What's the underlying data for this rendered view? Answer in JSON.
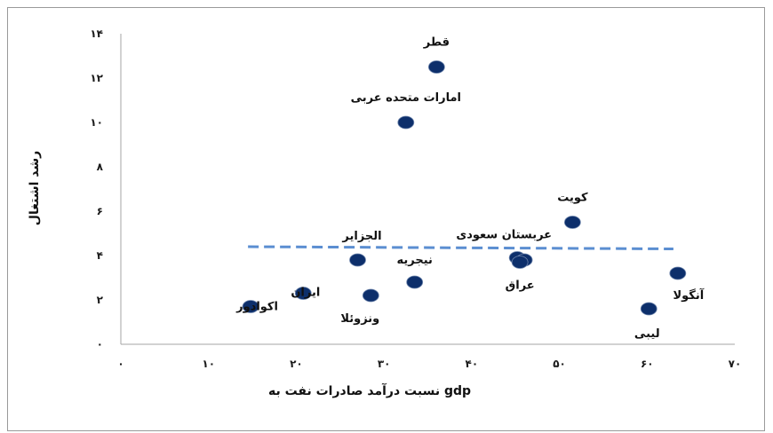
{
  "chart_data": {
    "type": "scatter",
    "title": "",
    "xlabel": "نسبت درآمد صادرات نفت به gdp",
    "ylabel": "رشد اشتغال",
    "xlim": [
      0,
      70
    ],
    "ylim": [
      0,
      14
    ],
    "x_ticks": [
      0,
      10,
      20,
      30,
      40,
      50,
      60,
      70
    ],
    "y_ticks": [
      0,
      2,
      4,
      6,
      8,
      10,
      12,
      14
    ],
    "x_tick_labels": [
      "۰",
      "۱۰",
      "۲۰",
      "۳۰",
      "۴۰",
      "۵۰",
      "۶۰",
      "۷۰"
    ],
    "y_tick_labels": [
      "۰",
      "۲",
      "۴",
      "۶",
      "۸",
      "۱۰",
      "۱۲",
      "۱۴"
    ],
    "grid": false,
    "point_color": "#0d2f6b",
    "trend_color": "#5b8ed1",
    "points": [
      {
        "label": "قطر",
        "x": 36,
        "y": 12.5
      },
      {
        "label": "امارات متحده عربی",
        "x": 32.5,
        "y": 10
      },
      {
        "label": "کویت",
        "x": 51.5,
        "y": 5.5
      },
      {
        "label": "عربستان سعودی",
        "x": 45.2,
        "y": 3.9
      },
      {
        "label": "",
        "x": 46,
        "y": 3.8
      },
      {
        "label": "الجزایر",
        "x": 27,
        "y": 3.8
      },
      {
        "label": "نیجریه",
        "x": 33.5,
        "y": 2.8
      },
      {
        "label": "عراق",
        "x": 45.5,
        "y": 3.7
      },
      {
        "label": "ایران",
        "x": 20.8,
        "y": 2.3
      },
      {
        "label": "ونزوئلا",
        "x": 28.5,
        "y": 2.2
      },
      {
        "label": "اکوادور",
        "x": 14.8,
        "y": 1.7
      },
      {
        "label": "آنگولا",
        "x": 63.5,
        "y": 3.2
      },
      {
        "label": "لیبی",
        "x": 60.2,
        "y": 1.6
      }
    ],
    "trendline": {
      "x": [
        14.5,
        63
      ],
      "y": [
        4.4,
        4.3
      ]
    }
  }
}
